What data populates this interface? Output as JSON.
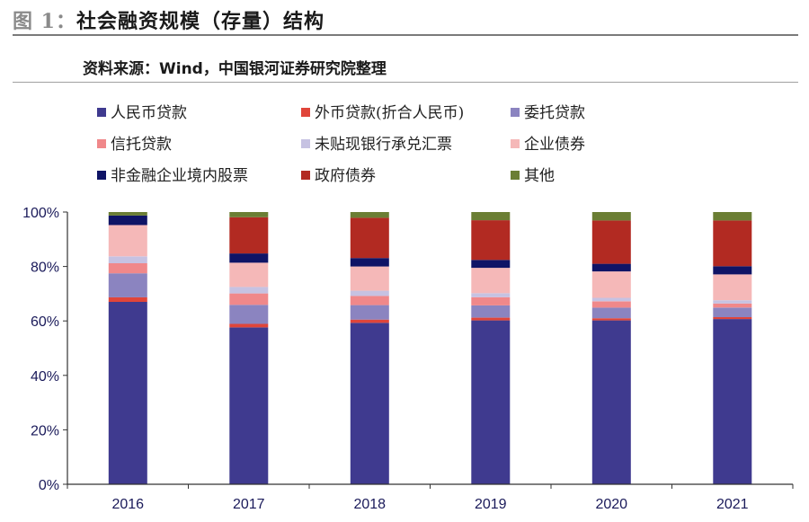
{
  "header": {
    "fig_num": "图 1：",
    "title": "社会融资规模（存量）结构",
    "source": "资料来源：Wind，中国银河证券研究院整理"
  },
  "chart_data": {
    "type": "bar",
    "stacked": true,
    "categories": [
      "2016",
      "2017",
      "2018",
      "2019",
      "2020",
      "2021"
    ],
    "ylim": [
      0,
      100
    ],
    "yticks": [
      "0%",
      "20%",
      "40%",
      "60%",
      "80%",
      "100%"
    ],
    "legend_placement": "top",
    "series": [
      {
        "name": "人民币贷款",
        "color": "#3f3a8f",
        "values": [
          67.0,
          57.6,
          59.3,
          60.2,
          60.2,
          60.7
        ]
      },
      {
        "name": "外币贷款(折合人民币)",
        "color": "#e0453a",
        "values": [
          1.7,
          1.3,
          1.2,
          1.0,
          0.8,
          0.7
        ]
      },
      {
        "name": "委托贷款",
        "color": "#8b84c0",
        "values": [
          8.8,
          7.0,
          5.3,
          4.5,
          3.9,
          3.5
        ]
      },
      {
        "name": "信托贷款",
        "color": "#f0888a",
        "values": [
          3.7,
          4.2,
          3.4,
          3.0,
          2.3,
          1.5
        ]
      },
      {
        "name": "未贴现银行承兑汇票",
        "color": "#c6c2e2",
        "values": [
          2.5,
          2.4,
          1.9,
          1.5,
          1.3,
          1.2
        ]
      },
      {
        "name": "企业债券",
        "color": "#f5b8b8",
        "values": [
          11.5,
          8.9,
          8.9,
          9.3,
          9.7,
          9.5
        ]
      },
      {
        "name": "非金融企业境内股票",
        "color": "#0f1466",
        "values": [
          3.5,
          3.4,
          3.1,
          2.9,
          2.8,
          3.0
        ]
      },
      {
        "name": "政府债券",
        "color": "#b22a22",
        "values": [
          0.0,
          13.3,
          14.8,
          14.6,
          15.9,
          16.8
        ]
      },
      {
        "name": "其他",
        "color": "#6b7e34",
        "values": [
          1.3,
          1.9,
          2.1,
          3.0,
          3.1,
          3.1
        ]
      }
    ]
  }
}
